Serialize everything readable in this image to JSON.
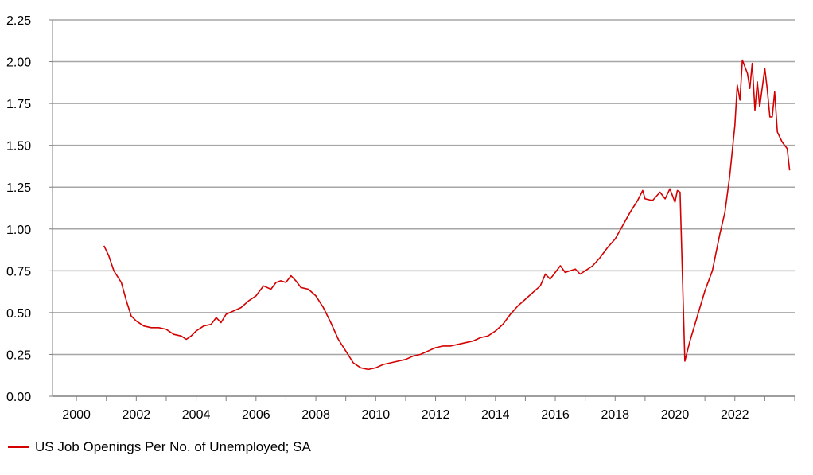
{
  "chart_data": {
    "type": "line",
    "title": "",
    "xlabel": "",
    "ylabel": "",
    "xlim": [
      1999.2,
      2024.0
    ],
    "ylim": [
      0,
      2.25
    ],
    "x_ticks": [
      "2000",
      "2002",
      "2004",
      "2006",
      "2008",
      "2010",
      "2012",
      "2014",
      "2016",
      "2018",
      "2020",
      "2022"
    ],
    "y_ticks": [
      "0.00",
      "0.25",
      "0.50",
      "0.75",
      "1.00",
      "1.25",
      "1.50",
      "1.75",
      "2.00",
      "2.25"
    ],
    "grid": "horizontal",
    "legend_position": "bottom-left",
    "series": [
      {
        "name": "US Job Openings Per No. of Unemployed; SA",
        "color": "#d40000",
        "points": [
          [
            2000.92,
            0.9
          ],
          [
            2001.08,
            0.84
          ],
          [
            2001.25,
            0.75
          ],
          [
            2001.5,
            0.68
          ],
          [
            2001.67,
            0.57
          ],
          [
            2001.83,
            0.48
          ],
          [
            2002.0,
            0.45
          ],
          [
            2002.25,
            0.42
          ],
          [
            2002.5,
            0.41
          ],
          [
            2002.75,
            0.41
          ],
          [
            2003.0,
            0.4
          ],
          [
            2003.25,
            0.37
          ],
          [
            2003.5,
            0.36
          ],
          [
            2003.67,
            0.34
          ],
          [
            2003.83,
            0.36
          ],
          [
            2004.0,
            0.39
          ],
          [
            2004.25,
            0.42
          ],
          [
            2004.5,
            0.43
          ],
          [
            2004.67,
            0.47
          ],
          [
            2004.83,
            0.44
          ],
          [
            2005.0,
            0.49
          ],
          [
            2005.25,
            0.51
          ],
          [
            2005.5,
            0.53
          ],
          [
            2005.75,
            0.57
          ],
          [
            2006.0,
            0.6
          ],
          [
            2006.25,
            0.66
          ],
          [
            2006.5,
            0.64
          ],
          [
            2006.67,
            0.68
          ],
          [
            2006.83,
            0.69
          ],
          [
            2007.0,
            0.68
          ],
          [
            2007.17,
            0.72
          ],
          [
            2007.33,
            0.69
          ],
          [
            2007.5,
            0.65
          ],
          [
            2007.75,
            0.64
          ],
          [
            2008.0,
            0.6
          ],
          [
            2008.25,
            0.53
          ],
          [
            2008.5,
            0.44
          ],
          [
            2008.75,
            0.34
          ],
          [
            2009.0,
            0.27
          ],
          [
            2009.25,
            0.2
          ],
          [
            2009.5,
            0.17
          ],
          [
            2009.75,
            0.16
          ],
          [
            2010.0,
            0.17
          ],
          [
            2010.25,
            0.19
          ],
          [
            2010.5,
            0.2
          ],
          [
            2010.75,
            0.21
          ],
          [
            2011.0,
            0.22
          ],
          [
            2011.25,
            0.24
          ],
          [
            2011.5,
            0.25
          ],
          [
            2011.75,
            0.27
          ],
          [
            2012.0,
            0.29
          ],
          [
            2012.25,
            0.3
          ],
          [
            2012.5,
            0.3
          ],
          [
            2012.75,
            0.31
          ],
          [
            2013.0,
            0.32
          ],
          [
            2013.25,
            0.33
          ],
          [
            2013.5,
            0.35
          ],
          [
            2013.75,
            0.36
          ],
          [
            2014.0,
            0.39
          ],
          [
            2014.25,
            0.43
          ],
          [
            2014.5,
            0.49
          ],
          [
            2014.75,
            0.54
          ],
          [
            2015.0,
            0.58
          ],
          [
            2015.25,
            0.62
          ],
          [
            2015.5,
            0.66
          ],
          [
            2015.67,
            0.73
          ],
          [
            2015.83,
            0.7
          ],
          [
            2016.0,
            0.74
          ],
          [
            2016.17,
            0.78
          ],
          [
            2016.33,
            0.74
          ],
          [
            2016.5,
            0.75
          ],
          [
            2016.67,
            0.76
          ],
          [
            2016.83,
            0.73
          ],
          [
            2017.0,
            0.75
          ],
          [
            2017.25,
            0.78
          ],
          [
            2017.5,
            0.83
          ],
          [
            2017.75,
            0.89
          ],
          [
            2018.0,
            0.94
          ],
          [
            2018.25,
            1.02
          ],
          [
            2018.5,
            1.1
          ],
          [
            2018.75,
            1.17
          ],
          [
            2018.92,
            1.23
          ],
          [
            2019.0,
            1.18
          ],
          [
            2019.25,
            1.17
          ],
          [
            2019.5,
            1.22
          ],
          [
            2019.67,
            1.18
          ],
          [
            2019.83,
            1.24
          ],
          [
            2020.0,
            1.16
          ],
          [
            2020.08,
            1.23
          ],
          [
            2020.17,
            1.22
          ],
          [
            2020.33,
            0.21
          ],
          [
            2020.5,
            0.33
          ],
          [
            2020.75,
            0.48
          ],
          [
            2021.0,
            0.63
          ],
          [
            2021.25,
            0.75
          ],
          [
            2021.5,
            0.97
          ],
          [
            2021.67,
            1.1
          ],
          [
            2021.83,
            1.32
          ],
          [
            2022.0,
            1.62
          ],
          [
            2022.08,
            1.86
          ],
          [
            2022.17,
            1.77
          ],
          [
            2022.25,
            2.01
          ],
          [
            2022.42,
            1.93
          ],
          [
            2022.5,
            1.84
          ],
          [
            2022.58,
            1.99
          ],
          [
            2022.67,
            1.71
          ],
          [
            2022.75,
            1.88
          ],
          [
            2022.83,
            1.73
          ],
          [
            2023.0,
            1.96
          ],
          [
            2023.08,
            1.84
          ],
          [
            2023.17,
            1.67
          ],
          [
            2023.25,
            1.67
          ],
          [
            2023.33,
            1.82
          ],
          [
            2023.42,
            1.58
          ],
          [
            2023.58,
            1.52
          ],
          [
            2023.75,
            1.48
          ],
          [
            2023.83,
            1.35
          ]
        ]
      }
    ]
  }
}
